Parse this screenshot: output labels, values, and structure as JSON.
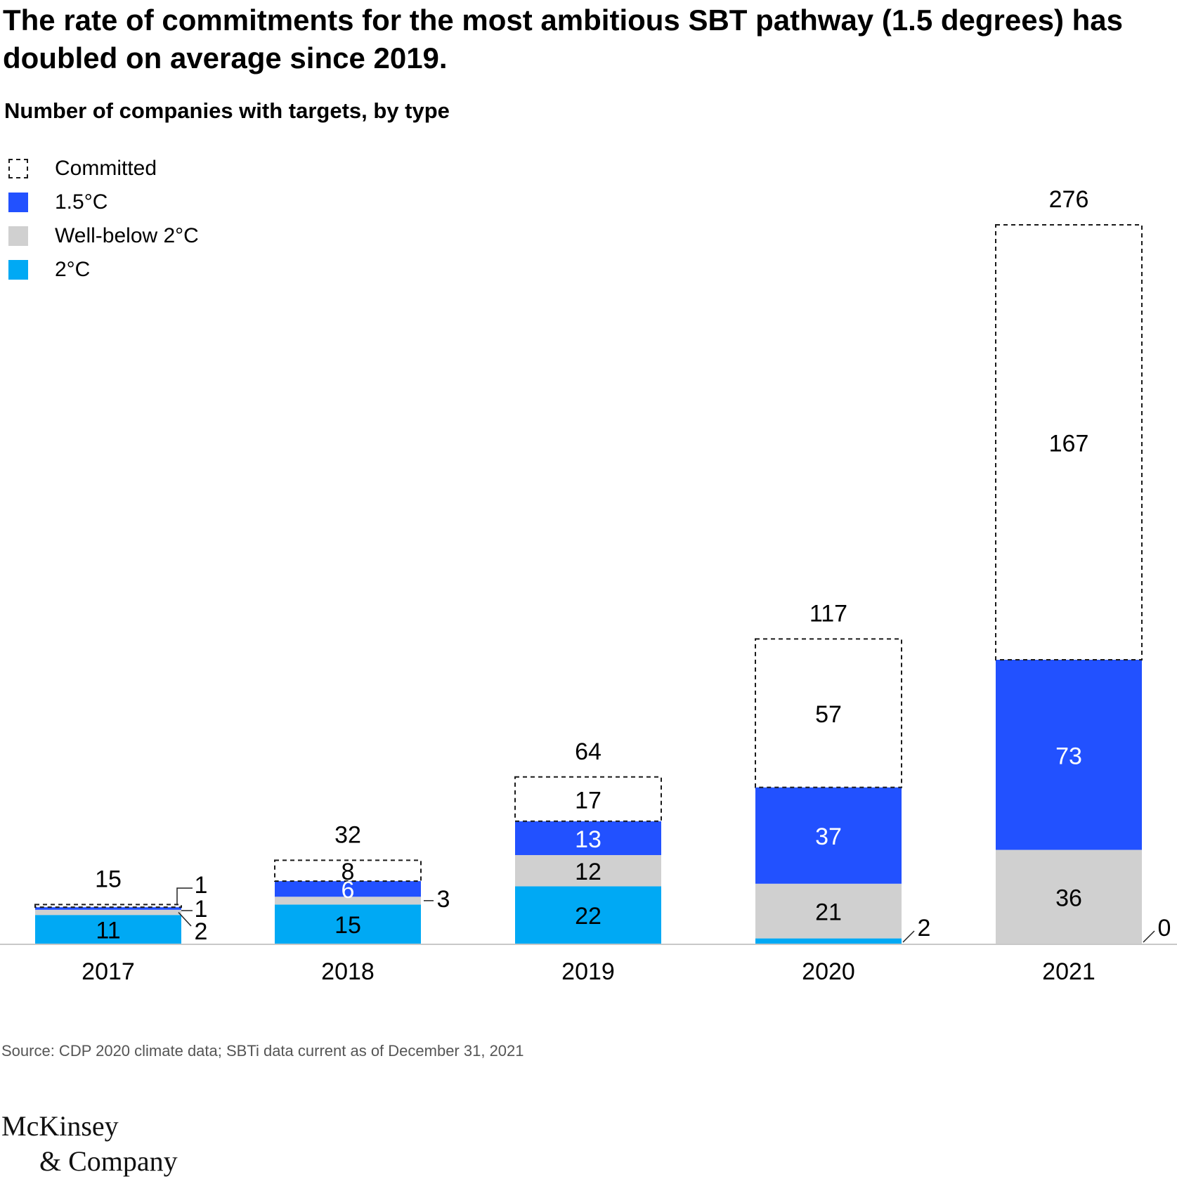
{
  "title": "The rate of commitments for the most ambitious SBT pathway (1.5 degrees) has doubled on average since 2019.",
  "subtitle": "Number of companies with targets, by type",
  "legend": [
    {
      "key": "committed",
      "label": "Committed",
      "style": "dashed"
    },
    {
      "key": "c15",
      "label": "1.5°C",
      "color": "#2251ff"
    },
    {
      "key": "wb2",
      "label": "Well-below 2°C",
      "color": "#d0d0d0"
    },
    {
      "key": "c2",
      "label": "2°C",
      "color": "#00a9f4"
    }
  ],
  "source": "Source: CDP 2020 climate data; SBTi data current as of December 31, 2021",
  "logo": {
    "line1": "McKinsey",
    "line2": "& Company"
  },
  "chart_data": {
    "type": "bar",
    "stacked": true,
    "title": "Number of companies with targets, by type",
    "categories": [
      "2017",
      "2018",
      "2019",
      "2020",
      "2021"
    ],
    "series": [
      {
        "name": "2°C",
        "key": "c2",
        "color": "#00a9f4",
        "values": [
          11,
          15,
          22,
          2,
          0
        ]
      },
      {
        "name": "Well-below 2°C",
        "key": "wb2",
        "color": "#d0d0d0",
        "values": [
          2,
          3,
          12,
          21,
          36
        ]
      },
      {
        "name": "1.5°C",
        "key": "c15",
        "color": "#2251ff",
        "values": [
          1,
          6,
          13,
          37,
          73
        ]
      },
      {
        "name": "Committed",
        "key": "committed",
        "color": "#ffffff",
        "values": [
          1,
          8,
          17,
          57,
          167
        ]
      }
    ],
    "totals": [
      15,
      32,
      64,
      117,
      276
    ],
    "ylim": [
      0,
      276
    ],
    "grid": false
  }
}
